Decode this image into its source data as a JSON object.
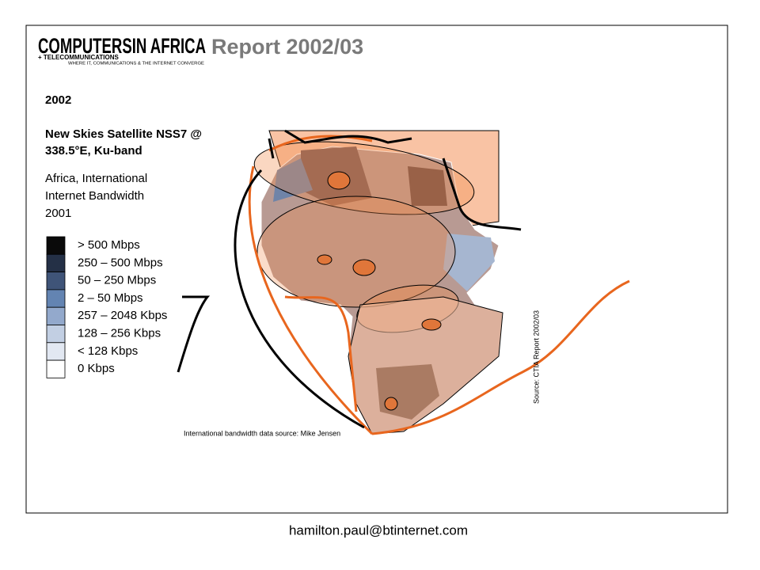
{
  "header": {
    "logo_main": "COMPUTERSIN AFRICA",
    "logo_sub": "+ TELECOMMUNICATIONS",
    "logo_tag": "WHERE IT, COMMUNICATIONS & THE INTERNET CONVERGE",
    "title": "Report 2002/03"
  },
  "year": "2002",
  "satellite": [
    "New Skies Satellite NSS7 @",
    "338.5°E, Ku-band"
  ],
  "subtitle": [
    "Africa, International",
    "Internet Bandwidth",
    "2001"
  ],
  "legend": [
    {
      "label": "> 500 Mbps",
      "color": "#0a0a0a"
    },
    {
      "label": "250 – 500 Mbps",
      "color": "#243046"
    },
    {
      "label": "50 – 250 Mbps",
      "color": "#3f5478"
    },
    {
      "label": "2 – 50 Mbps",
      "color": "#6384b2"
    },
    {
      "label": "257 – 2048 Kbps",
      "color": "#93a9cc"
    },
    {
      "label": "128 – 256 Kbps",
      "color": "#c2cfe3"
    },
    {
      "label": "< 128 Kbps",
      "color": "#e2e8f2"
    },
    {
      "label": "0 Kbps",
      "color": "#ffffff"
    }
  ],
  "source_right": "Source: CTIA Report 2002/03",
  "source_bottom": "International bandwidth data source: Mike Jensen",
  "footer": "hamilton.paul@btinternet.com"
}
